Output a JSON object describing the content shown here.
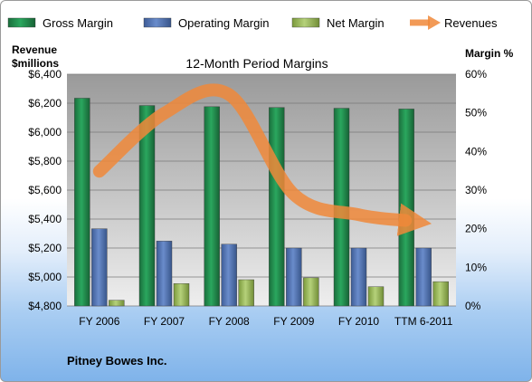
{
  "chart_data": {
    "type": "bar",
    "title": "12-Month Period Margins",
    "categories": [
      "FY 2006",
      "FY 2007",
      "FY 2008",
      "FY 2009",
      "FY 2010",
      "TTM 6-2011"
    ],
    "series": [
      {
        "name": "Gross Margin",
        "axis": "right",
        "type": "bar",
        "color": "#1f8a4c",
        "values": [
          53.8,
          51.9,
          51.6,
          51.4,
          51.2,
          51.0
        ]
      },
      {
        "name": "Operating Margin",
        "axis": "right",
        "type": "bar",
        "color": "#4f72b3",
        "values": [
          20.0,
          16.8,
          16.0,
          15.0,
          15.0,
          15.0
        ]
      },
      {
        "name": "Net Margin",
        "axis": "right",
        "type": "bar",
        "color": "#9bbb59",
        "values": [
          1.5,
          5.8,
          6.8,
          7.3,
          5.0,
          6.3
        ]
      },
      {
        "name": "Revenues",
        "axis": "left",
        "type": "line",
        "color": "#f0883a",
        "values": [
          5730,
          6130,
          6260,
          5570,
          5430,
          5390
        ]
      }
    ],
    "ylabel_left": [
      "Revenue",
      "$millions"
    ],
    "ylabel_right": "Margin %",
    "ylim_left": [
      4800,
      6400
    ],
    "ylim_right": [
      0,
      60
    ],
    "yticks_left": [
      "$4,800",
      "$5,000",
      "$5,200",
      "$5,400",
      "$5,600",
      "$5,800",
      "$6,000",
      "$6,200",
      "$6,400"
    ],
    "yticks_right": [
      "0%",
      "10%",
      "20%",
      "30%",
      "40%",
      "50%",
      "60%"
    ],
    "legend_position": "top",
    "grid": true
  },
  "footer": {
    "company": "Pitney Bowes Inc."
  }
}
